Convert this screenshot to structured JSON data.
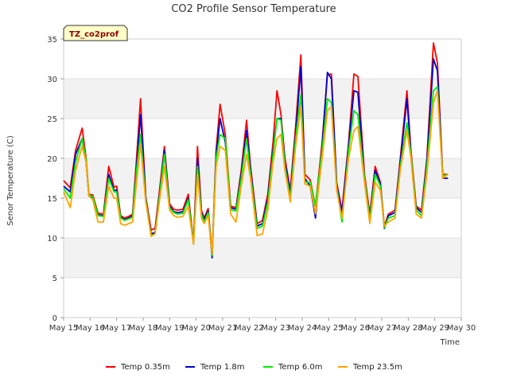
{
  "chart_data": {
    "type": "line",
    "title": "CO2 Profile Sensor Temperature",
    "xlabel": "Time",
    "ylabel": "Senor Temperature (C)",
    "site_badge": "TZ_co2prof",
    "ylim": [
      0,
      35
    ],
    "yticks": [
      0,
      5,
      10,
      15,
      20,
      25,
      30,
      35
    ],
    "xlim": [
      15,
      30
    ],
    "xtick_values": [
      15,
      16,
      17,
      18,
      19,
      20,
      21,
      22,
      23,
      24,
      25,
      26,
      27,
      28,
      29,
      30
    ],
    "xtick_labels": [
      "May 15",
      "May 16",
      "May 17",
      "May 18",
      "May 19",
      "May 20",
      "May 21",
      "May 22",
      "May 23",
      "May 24",
      "May 25",
      "May 26",
      "May 27",
      "May 28",
      "May 29",
      "May 30"
    ],
    "grid": "horizontal bands",
    "legend_position": "bottom",
    "series": [
      {
        "name": "Temp 0.35m",
        "color": "#ff0000",
        "x": [
          15.0,
          15.25,
          15.45,
          15.7,
          15.85,
          15.95,
          16.1,
          16.3,
          16.5,
          16.7,
          16.9,
          17.0,
          17.15,
          17.3,
          17.45,
          17.6,
          17.75,
          17.9,
          18.1,
          18.3,
          18.45,
          18.6,
          18.8,
          19.0,
          19.15,
          19.3,
          19.5,
          19.7,
          19.9,
          20.05,
          20.2,
          20.3,
          20.45,
          20.6,
          20.75,
          20.9,
          21.1,
          21.3,
          21.5,
          21.7,
          21.9,
          22.05,
          22.3,
          22.5,
          22.7,
          22.9,
          23.05,
          23.2,
          23.35,
          23.55,
          23.75,
          23.95,
          24.1,
          24.3,
          24.5,
          24.75,
          24.95,
          25.1,
          25.3,
          25.5,
          25.75,
          25.95,
          26.1,
          26.35,
          26.55,
          26.75,
          26.95,
          27.1,
          27.25,
          27.5,
          27.7,
          27.95,
          28.1,
          28.3,
          28.5,
          28.7,
          28.95,
          29.1,
          29.3,
          29.5
        ],
        "y": [
          17.2,
          16.3,
          21.0,
          23.8,
          20.0,
          15.5,
          15.4,
          13.1,
          13.0,
          19.0,
          16.4,
          16.5,
          12.8,
          12.5,
          12.7,
          13.0,
          20.0,
          27.5,
          15.2,
          11.0,
          11.2,
          15.5,
          21.5,
          14.3,
          13.6,
          13.5,
          13.6,
          15.5,
          9.5,
          21.5,
          13.5,
          12.5,
          13.7,
          8.0,
          21.0,
          26.8,
          23.0,
          14.0,
          13.8,
          18.5,
          24.8,
          19.0,
          11.8,
          12.2,
          15.5,
          22.0,
          28.5,
          25.5,
          20.0,
          16.0,
          24.0,
          33.0,
          18.0,
          17.3,
          14.0,
          22.0,
          30.5,
          30.6,
          17.0,
          13.5,
          22.0,
          30.6,
          30.3,
          18.0,
          13.0,
          19.0,
          17.0,
          11.5,
          13.0,
          13.5,
          20.0,
          28.5,
          21.0,
          14.0,
          13.5,
          20.0,
          34.5,
          32.0,
          18.0,
          18.0
        ]
      },
      {
        "name": "Temp 1.8m",
        "color": "#0000cc",
        "x": [
          15.0,
          15.25,
          15.45,
          15.7,
          15.85,
          15.95,
          16.1,
          16.3,
          16.5,
          16.7,
          16.9,
          17.0,
          17.15,
          17.3,
          17.45,
          17.6,
          17.75,
          17.9,
          18.1,
          18.3,
          18.45,
          18.6,
          18.8,
          19.0,
          19.15,
          19.3,
          19.5,
          19.7,
          19.9,
          20.05,
          20.2,
          20.3,
          20.45,
          20.6,
          20.75,
          20.9,
          21.1,
          21.3,
          21.5,
          21.7,
          21.9,
          22.05,
          22.3,
          22.5,
          22.7,
          22.9,
          23.05,
          23.2,
          23.35,
          23.55,
          23.75,
          23.95,
          24.1,
          24.3,
          24.5,
          24.75,
          24.95,
          25.1,
          25.3,
          25.5,
          25.75,
          25.95,
          26.1,
          26.35,
          26.55,
          26.75,
          26.95,
          27.1,
          27.25,
          27.5,
          27.7,
          27.95,
          28.1,
          28.3,
          28.5,
          28.7,
          28.95,
          29.1,
          29.3,
          29.5
        ],
        "y": [
          16.5,
          15.8,
          20.5,
          22.5,
          19.5,
          15.3,
          15.0,
          12.9,
          12.8,
          18.0,
          16.0,
          16.0,
          12.6,
          12.3,
          12.5,
          12.8,
          19.0,
          25.5,
          15.0,
          10.5,
          10.7,
          15.0,
          21.0,
          14.0,
          13.3,
          13.2,
          13.3,
          15.0,
          9.3,
          20.0,
          13.2,
          12.3,
          13.4,
          7.5,
          20.5,
          25.0,
          22.0,
          13.8,
          13.6,
          18.0,
          23.5,
          18.5,
          11.5,
          11.8,
          15.0,
          21.0,
          25.0,
          25.0,
          19.5,
          15.5,
          23.0,
          31.5,
          17.5,
          16.5,
          12.5,
          21.5,
          30.8,
          30.0,
          16.8,
          13.0,
          21.5,
          28.5,
          28.3,
          17.5,
          12.5,
          18.5,
          16.8,
          11.2,
          12.8,
          13.2,
          19.5,
          27.5,
          20.5,
          13.8,
          13.2,
          19.5,
          32.5,
          31.0,
          17.5,
          17.5
        ]
      },
      {
        "name": "Temp 6.0m",
        "color": "#00ee00",
        "x": [
          15.0,
          15.25,
          15.45,
          15.7,
          15.85,
          15.95,
          16.1,
          16.3,
          16.5,
          16.7,
          16.9,
          17.0,
          17.15,
          17.3,
          17.45,
          17.6,
          17.75,
          17.9,
          18.1,
          18.3,
          18.45,
          18.6,
          18.8,
          19.0,
          19.15,
          19.3,
          19.5,
          19.7,
          19.9,
          20.05,
          20.2,
          20.3,
          20.45,
          20.6,
          20.75,
          20.9,
          21.1,
          21.3,
          21.5,
          21.7,
          21.9,
          22.05,
          22.3,
          22.5,
          22.7,
          22.9,
          23.05,
          23.2,
          23.35,
          23.55,
          23.75,
          23.95,
          24.1,
          24.3,
          24.5,
          24.75,
          24.95,
          25.1,
          25.3,
          25.5,
          25.75,
          25.95,
          26.1,
          26.35,
          26.55,
          26.75,
          26.95,
          27.1,
          27.25,
          27.5,
          27.7,
          27.95,
          28.1,
          28.3,
          28.5,
          28.7,
          28.95,
          29.1,
          29.3,
          29.5
        ],
        "y": [
          16.2,
          15.0,
          19.5,
          22.5,
          19.8,
          15.4,
          15.2,
          12.8,
          12.7,
          17.5,
          15.8,
          15.8,
          12.5,
          12.2,
          12.4,
          12.6,
          18.5,
          23.0,
          14.8,
          10.3,
          10.5,
          14.8,
          20.5,
          13.8,
          13.2,
          13.0,
          13.1,
          14.8,
          9.3,
          19.0,
          13.0,
          12.0,
          13.2,
          7.8,
          20.0,
          23.0,
          22.5,
          13.5,
          13.4,
          17.5,
          22.5,
          18.0,
          11.2,
          11.5,
          14.5,
          20.5,
          25.0,
          24.8,
          19.0,
          15.0,
          22.5,
          28.0,
          17.0,
          17.0,
          14.0,
          21.0,
          27.5,
          27.0,
          16.5,
          12.0,
          21.0,
          26.0,
          25.5,
          17.5,
          12.3,
          18.0,
          16.5,
          11.3,
          12.5,
          12.8,
          19.0,
          24.5,
          20.5,
          13.5,
          12.8,
          19.0,
          28.5,
          29.0,
          17.8,
          18.0
        ]
      },
      {
        "name": "Temp 23.5m",
        "color": "#ffa500",
        "x": [
          15.0,
          15.25,
          15.45,
          15.7,
          15.85,
          15.95,
          16.1,
          16.3,
          16.5,
          16.7,
          16.9,
          17.0,
          17.15,
          17.3,
          17.45,
          17.6,
          17.75,
          17.9,
          18.1,
          18.3,
          18.45,
          18.6,
          18.8,
          19.0,
          19.15,
          19.3,
          19.5,
          19.7,
          19.9,
          20.05,
          20.2,
          20.3,
          20.45,
          20.6,
          20.75,
          20.9,
          21.1,
          21.3,
          21.5,
          21.7,
          21.9,
          22.05,
          22.3,
          22.5,
          22.7,
          22.9,
          23.05,
          23.2,
          23.35,
          23.55,
          23.75,
          23.95,
          24.1,
          24.3,
          24.5,
          24.75,
          24.95,
          25.1,
          25.3,
          25.5,
          25.75,
          25.95,
          26.1,
          26.35,
          26.55,
          26.75,
          26.95,
          27.1,
          27.25,
          27.5,
          27.7,
          27.95,
          28.1,
          28.3,
          28.5,
          28.7,
          28.95,
          29.1,
          29.3,
          29.5
        ],
        "y": [
          15.8,
          13.8,
          18.5,
          21.5,
          19.5,
          15.3,
          14.8,
          12.0,
          12.0,
          16.5,
          15.0,
          15.0,
          11.8,
          11.6,
          11.8,
          12.0,
          17.0,
          21.8,
          14.5,
          10.2,
          10.5,
          14.3,
          19.0,
          13.5,
          12.8,
          12.6,
          12.7,
          14.0,
          9.2,
          18.0,
          12.5,
          11.8,
          12.8,
          8.0,
          19.0,
          21.5,
          21.0,
          13.0,
          12.0,
          16.5,
          20.5,
          17.5,
          10.3,
          10.5,
          13.5,
          19.5,
          22.5,
          23.0,
          18.5,
          14.5,
          21.5,
          26.5,
          16.8,
          16.5,
          13.0,
          20.0,
          26.0,
          26.5,
          16.0,
          12.5,
          20.0,
          23.5,
          24.0,
          17.0,
          11.8,
          17.0,
          16.0,
          11.5,
          12.0,
          12.5,
          18.5,
          23.5,
          20.0,
          13.0,
          12.5,
          18.0,
          27.0,
          28.5,
          17.5,
          18.0
        ]
      }
    ]
  }
}
